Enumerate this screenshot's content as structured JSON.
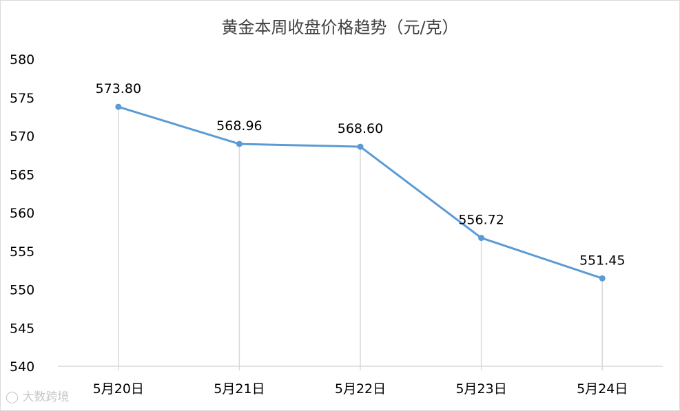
{
  "chart_data": {
    "type": "line",
    "title": "黄金本周收盘价格趋势（元/克）",
    "xlabel": "",
    "ylabel": "",
    "categories": [
      "5月20日",
      "5月21日",
      "5月22日",
      "5月23日",
      "5月24日"
    ],
    "series": [
      {
        "values": [
          573.8,
          568.96,
          568.6,
          556.72,
          551.45
        ],
        "data_labels": [
          "573.80",
          "568.96",
          "568.60",
          "556.72",
          "551.45"
        ]
      }
    ],
    "ylim": [
      540,
      580
    ],
    "yticks": [
      "540",
      "545",
      "550",
      "555",
      "560",
      "565",
      "570",
      "575",
      "580"
    ],
    "grid": false,
    "drop_lines": true,
    "line_color": "#5b9bd5",
    "drop_line_color": "#d9d9d9",
    "axis_color": "#d9d9d9"
  },
  "watermark": "大数跨境"
}
